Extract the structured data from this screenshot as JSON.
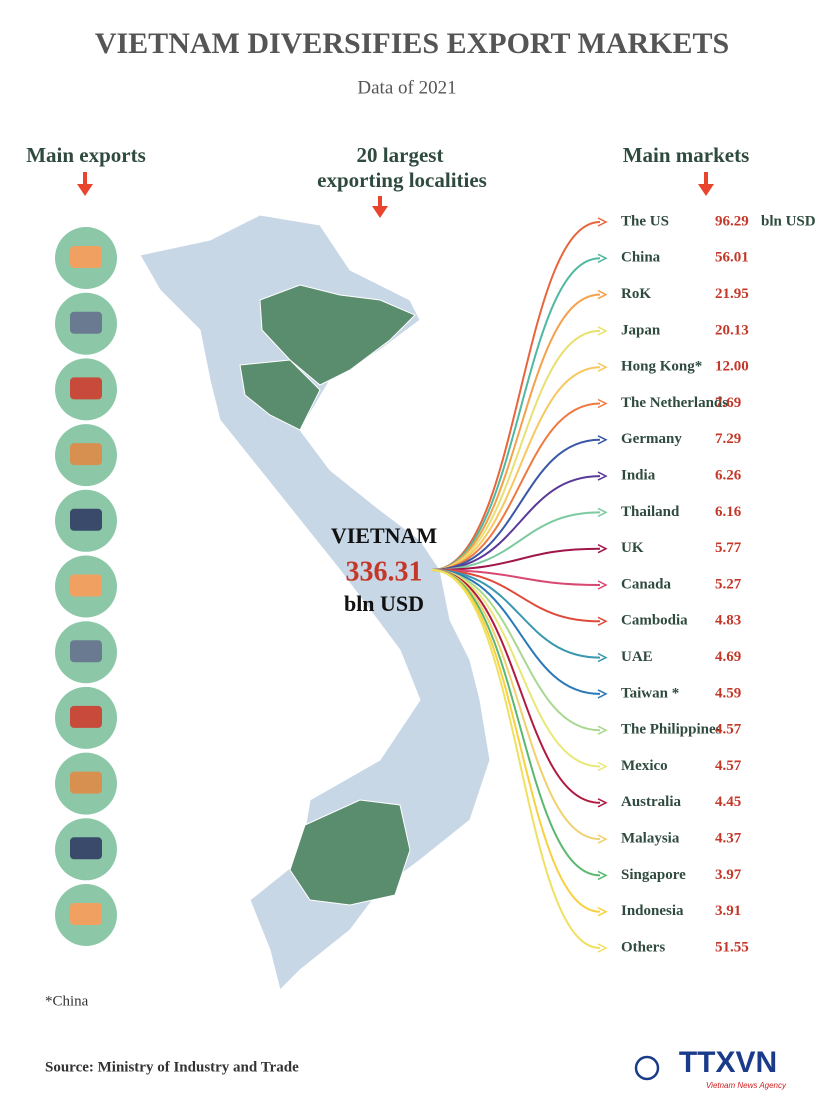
{
  "header": {
    "title": "VIETNAM DIVERSIFIES EXPORT MARKETS",
    "subtitle": "Data of 2021"
  },
  "exports": {
    "label": "Main exports"
  },
  "localities": {
    "label_lines": [
      "20 largest",
      "exporting localities"
    ]
  },
  "center": {
    "name": "VIETNAM",
    "total": 336.31,
    "unit": "bln USD"
  },
  "markets": {
    "label": "Main markets",
    "unit": "bln USD",
    "items": [
      {
        "name": "The US",
        "value": 96.29,
        "color": "#e8643c"
      },
      {
        "name": "China",
        "value": 56.01,
        "color": "#4fb8a0"
      },
      {
        "name": "RoK",
        "value": 21.95,
        "color": "#f5a04a"
      },
      {
        "name": "Japan",
        "value": 20.13,
        "color": "#e8e070"
      },
      {
        "name": "Hong Kong*",
        "value": 12,
        "value_label": "12.00",
        "color": "#f7c860"
      },
      {
        "name": "The Netherlands",
        "value": 7.69,
        "color": "#ee7a40"
      },
      {
        "name": "Germany",
        "value": 7.29,
        "color": "#3a58a8"
      },
      {
        "name": "India",
        "value": 6.26,
        "color": "#5a3a98"
      },
      {
        "name": "Thailand",
        "value": 6.16,
        "color": "#7ccaa0"
      },
      {
        "name": "UK",
        "value": 5.77,
        "color": "#a0154a"
      },
      {
        "name": "Canada",
        "value": 5.27,
        "color": "#d84870"
      },
      {
        "name": "Cambodia",
        "value": 4.83,
        "color": "#e04a3a"
      },
      {
        "name": "UAE",
        "value": 4.69,
        "color": "#3a98b0"
      },
      {
        "name": "Taiwan *",
        "value": 4.59,
        "color": "#2a78b8"
      },
      {
        "name": "The Philippines",
        "value": 4.57,
        "color": "#a8d890"
      },
      {
        "name": "Mexico",
        "value": 4.57,
        "color": "#e8e878"
      },
      {
        "name": "Australia",
        "value": 4.45,
        "color": "#b01a40"
      },
      {
        "name": "Malaysia",
        "value": 4.37,
        "color": "#f0d070"
      },
      {
        "name": "Singapore",
        "value": 3.97,
        "color": "#5ab870"
      },
      {
        "name": "Indonesia",
        "value": 3.91,
        "color": "#f8d040"
      },
      {
        "name": "Others",
        "value": 51.55,
        "color": "#f0e060"
      }
    ]
  },
  "footnote": "*China",
  "source": "Source: Ministry of Industry and Trade",
  "logo": {
    "name": "TTXVN",
    "tagline": "Vietnam News Agency"
  }
}
